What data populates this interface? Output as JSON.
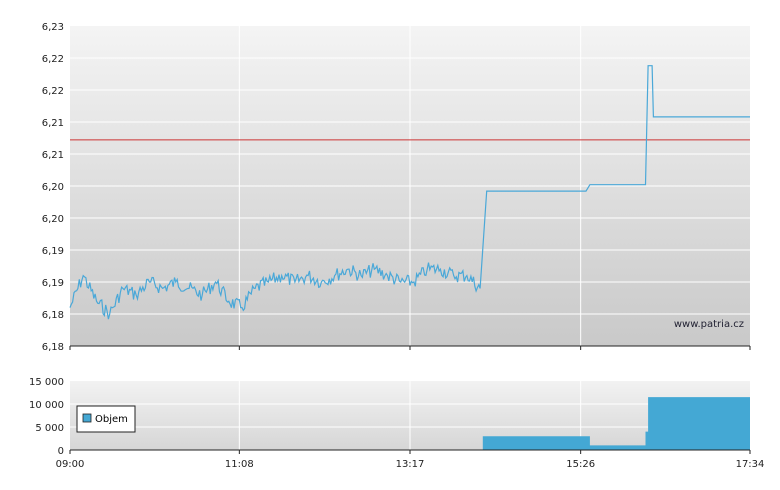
{
  "chart_data": [
    {
      "type": "line",
      "name": "price",
      "x_ticks": [
        "09:00",
        "11:08",
        "13:17",
        "15:26",
        "17:34"
      ],
      "y_ticks": [
        "6,23",
        "6,22",
        "6,22",
        "6,21",
        "6,21",
        "6,20",
        "6,20",
        "6,19",
        "6,19",
        "6,18",
        "6,18"
      ],
      "ylim": [
        6.18,
        6.23
      ],
      "xlim": [
        "09:00",
        "17:34"
      ],
      "reference_line": 6.2122,
      "series": [
        {
          "points": [
            [
              "09:00",
              6.186
            ],
            [
              "09:10",
              6.191
            ],
            [
              "09:20",
              6.187
            ],
            [
              "09:30",
              6.185
            ],
            [
              "09:40",
              6.189
            ],
            [
              "09:50",
              6.188
            ],
            [
              "10:00",
              6.19
            ],
            [
              "10:10",
              6.189
            ],
            [
              "10:20",
              6.19
            ],
            [
              "10:30",
              6.189
            ],
            [
              "10:40",
              6.188
            ],
            [
              "10:50",
              6.19
            ],
            [
              "11:00",
              6.187
            ],
            [
              "11:10",
              6.186
            ],
            [
              "11:20",
              6.189
            ],
            [
              "11:30",
              6.19
            ],
            [
              "11:40",
              6.191
            ],
            [
              "11:50",
              6.19
            ],
            [
              "12:00",
              6.191
            ],
            [
              "12:10",
              6.19
            ],
            [
              "12:20",
              6.191
            ],
            [
              "12:30",
              6.192
            ],
            [
              "12:40",
              6.191
            ],
            [
              "12:50",
              6.192
            ],
            [
              "13:00",
              6.191
            ],
            [
              "13:10",
              6.19
            ],
            [
              "13:20",
              6.19
            ],
            [
              "13:30",
              6.192
            ],
            [
              "13:40",
              6.192
            ],
            [
              "13:50",
              6.191
            ],
            [
              "14:00",
              6.191
            ],
            [
              "14:10",
              6.189
            ],
            [
              "14:15",
              6.2042
            ],
            [
              "15:30",
              6.2042
            ],
            [
              "15:33",
              6.2052
            ],
            [
              "16:15",
              6.2052
            ],
            [
              "16:17",
              6.2238
            ],
            [
              "16:20",
              6.2238
            ],
            [
              "16:21",
              6.2158
            ],
            [
              "17:34",
              6.2158
            ]
          ]
        }
      ],
      "watermark": "www.patria.cz"
    },
    {
      "type": "area",
      "name": "volume",
      "ylim": [
        0,
        15000
      ],
      "y_ticks": [
        "15 000",
        "10 000",
        "5 000",
        "0"
      ],
      "legend": "Objem",
      "series": [
        {
          "name": "Objem",
          "steps": [
            [
              "14:12",
              0
            ],
            [
              "14:12",
              3000
            ],
            [
              "15:33",
              3000
            ],
            [
              "15:33",
              1000
            ],
            [
              "16:15",
              1000
            ],
            [
              "16:15",
              4000
            ],
            [
              "16:17",
              4000
            ],
            [
              "16:17",
              11500
            ],
            [
              "17:34",
              11500
            ],
            [
              "17:34",
              0
            ]
          ]
        }
      ]
    }
  ],
  "colors": {
    "price_line": "#4aa8d8",
    "reference_line": "#cc3333",
    "volume_fill": "#44a8d4",
    "grid": "#ffffff",
    "axis": "#222222"
  }
}
